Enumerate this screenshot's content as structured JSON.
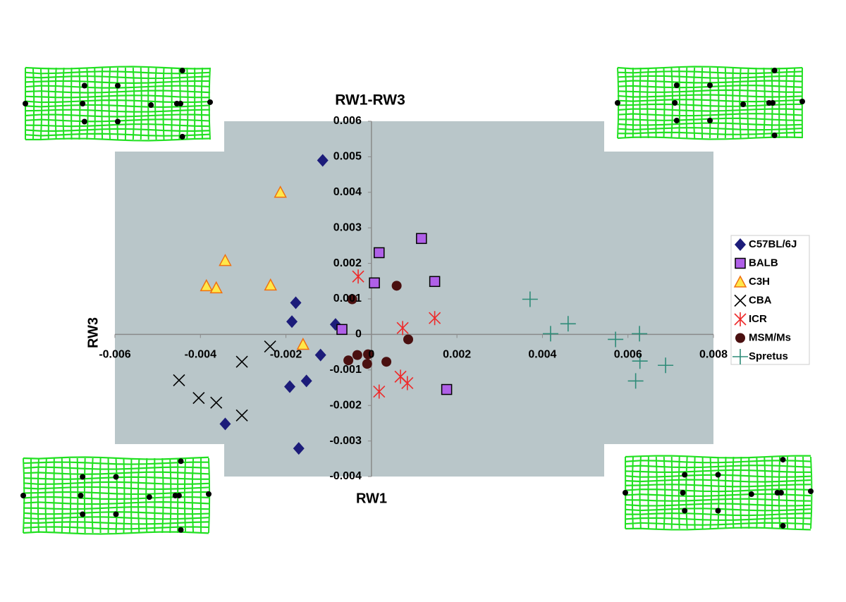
{
  "chart_data": {
    "type": "scatter",
    "title": "RW1-RW3",
    "x_label": "RW1",
    "y_label": "RW3",
    "xlim": [
      -0.006,
      0.008
    ],
    "xticks": [
      -0.006,
      -0.004,
      -0.002,
      0,
      0.002,
      0.004,
      0.006,
      0.008
    ],
    "ylim": [
      -0.004,
      0.006
    ],
    "yticks": [
      -0.004,
      -0.003,
      -0.002,
      -0.001,
      0,
      0.001,
      0.002,
      0.003,
      0.004,
      0.005,
      0.006
    ],
    "background": "#b9c6c9",
    "legend": "right",
    "series": [
      {
        "name": "C57BL/6J",
        "marker": "diamond",
        "color": "#1c1c7a",
        "x": [
          -0.00114,
          -0.00177,
          -0.00186,
          -0.00084,
          -0.00119,
          -0.00152,
          -0.00191,
          -0.00342,
          -0.0017
        ],
        "y": [
          0.0049,
          0.00089,
          0.00036,
          0.00028,
          -0.00058,
          -0.00131,
          -0.00147,
          -0.00252,
          -0.00321
        ]
      },
      {
        "name": "BALB",
        "marker": "square",
        "color": "#b060e8",
        "x": [
          0.00117,
          0.00018,
          7e-05,
          0.00148,
          -0.00069,
          0.00176
        ],
        "y": [
          0.0027,
          0.0023,
          0.00145,
          0.00149,
          0.00014,
          -0.00155
        ]
      },
      {
        "name": "C3H",
        "marker": "triangle",
        "color": "#ffe84a",
        "x": [
          -0.00213,
          -0.00342,
          -0.00386,
          -0.00363,
          -0.00236,
          -0.0016
        ],
        "y": [
          0.004,
          0.00208,
          0.00137,
          0.00131,
          0.00139,
          -0.00028
        ]
      },
      {
        "name": "CBA",
        "marker": "x",
        "color": "#000000",
        "x": [
          -0.00237,
          -0.00303,
          -0.0045,
          -0.00404,
          -0.00363,
          -0.00303
        ],
        "y": [
          -0.00034,
          -0.00077,
          -0.00129,
          -0.00179,
          -0.00192,
          -0.00228
        ]
      },
      {
        "name": "ICR",
        "marker": "asterisk",
        "color": "#ee2a2a",
        "x": [
          -0.00031,
          0.00073,
          0.00148,
          0.00068,
          0.00084,
          0.00018
        ],
        "y": [
          0.00163,
          0.00018,
          0.00046,
          -0.00119,
          -0.00137,
          -0.00161
        ]
      },
      {
        "name": "MSM/Ms",
        "marker": "circle",
        "color": "#4a1010",
        "x": [
          -0.00045,
          0.00059,
          0.00086,
          -0.00033,
          -8e-05,
          -0.00054,
          -0.0001,
          0.00035
        ],
        "y": [
          0.00099,
          0.00137,
          -0.00014,
          -0.00058,
          -0.00056,
          -0.00073,
          -0.00083,
          -0.00077
        ]
      },
      {
        "name": "Spretus",
        "marker": "plus",
        "color": "#2e8b78",
        "x": [
          0.00371,
          0.00419,
          0.0046,
          0.00571,
          0.00627,
          0.00628,
          0.00688,
          0.00618
        ],
        "y": [
          0.00099,
          2e-05,
          0.0003,
          -0.00014,
          2e-05,
          -0.00075,
          -0.00087,
          -0.00131
        ]
      }
    ]
  }
}
